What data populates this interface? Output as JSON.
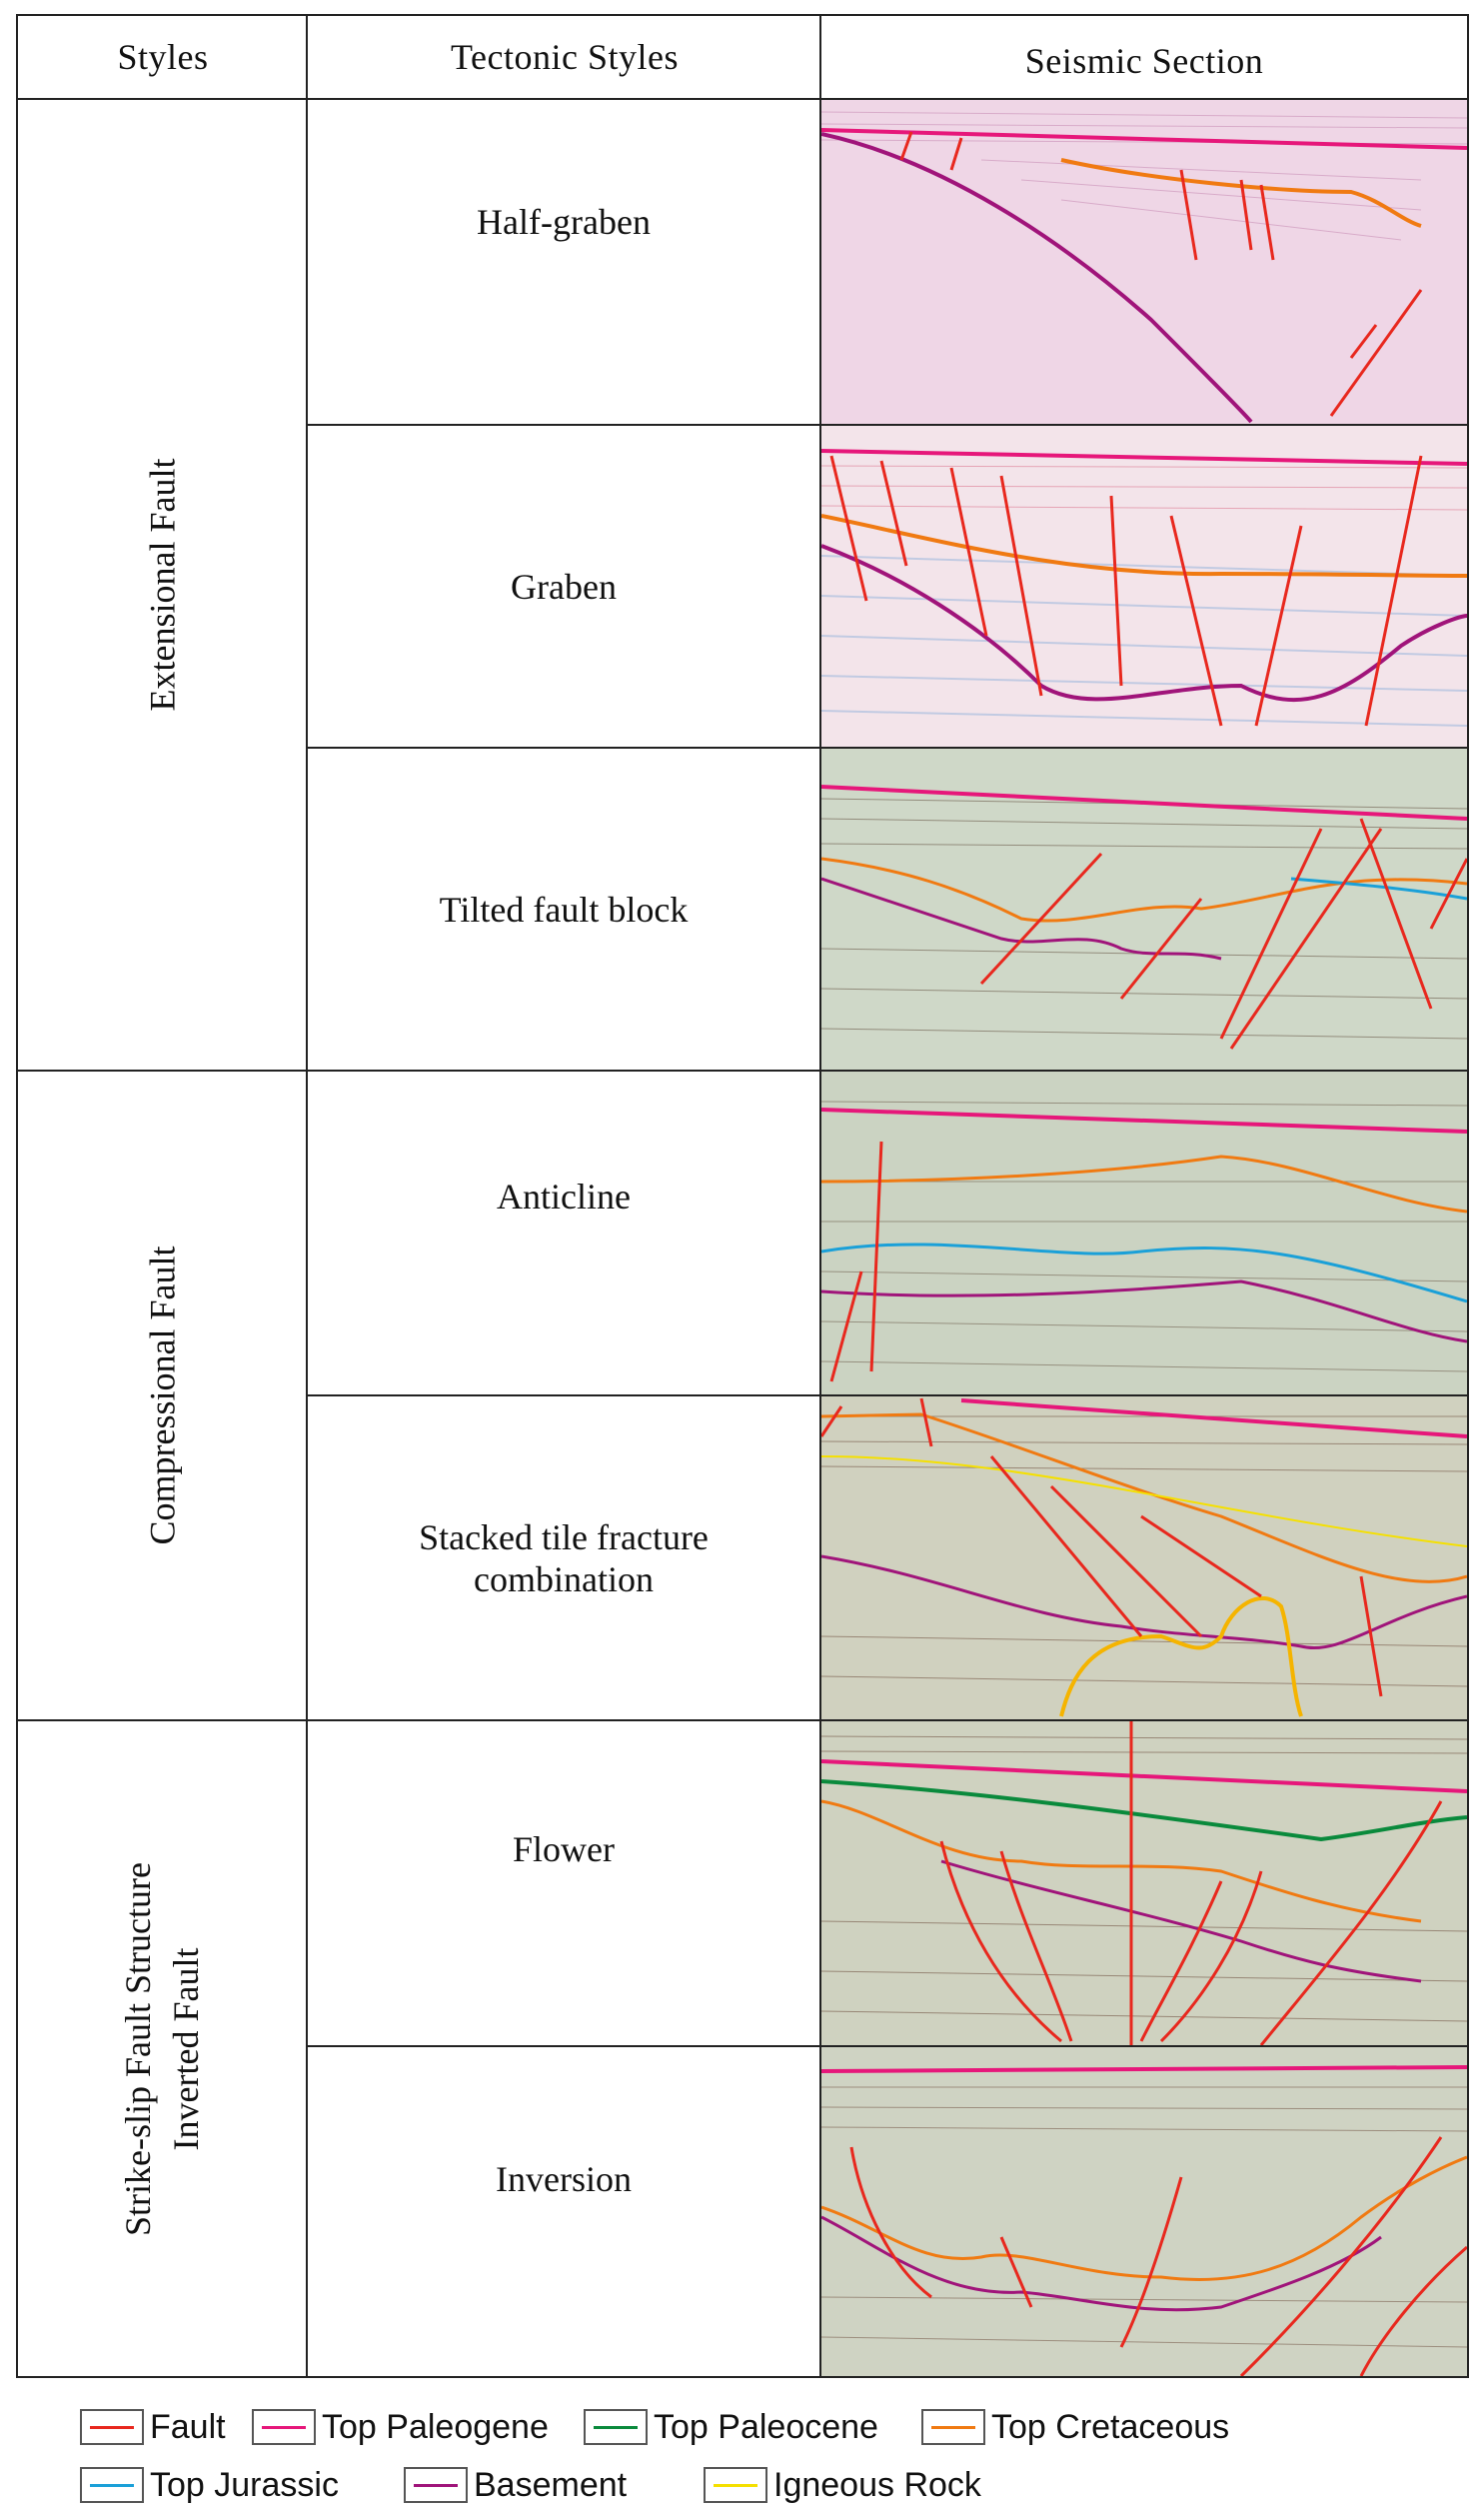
{
  "header": {
    "col1": "Styles",
    "col2": "Tectonic  Styles",
    "col3": "Seismic Section"
  },
  "groups": [
    {
      "lines": [
        "Extensional Fault"
      ]
    },
    {
      "lines": [
        "Compressional  Fault"
      ]
    },
    {
      "lines": [
        "Strike-slip Fault  Structure",
        "Inverted Fault"
      ]
    }
  ],
  "styles": [
    "Half-graben",
    "Graben",
    "Tilted fault block",
    "Anticline",
    "Stacked tile fracture\ncombination",
    "Flower",
    "Inversion"
  ],
  "legend": [
    {
      "label": "Fault",
      "color": "#e8281e"
    },
    {
      "label": "Top Paleogene",
      "color": "#e6177a"
    },
    {
      "label": "Top Paleocene",
      "color": "#0a8a3c"
    },
    {
      "label": "Top Cretaceous",
      "color": "#f07a12"
    },
    {
      "label": "Top Jurassic",
      "color": "#1aa0d8"
    },
    {
      "label": "Basement",
      "color": "#a0147a"
    },
    {
      "label": "Igneous Rock",
      "color": "#f5e000"
    }
  ]
}
